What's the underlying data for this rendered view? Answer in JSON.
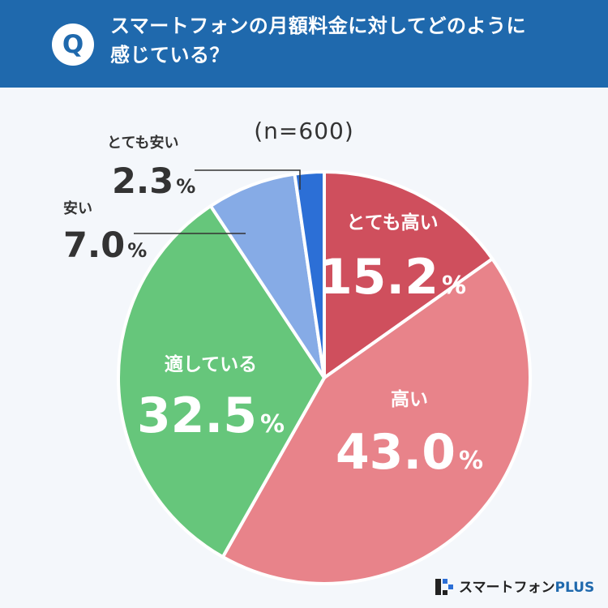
{
  "header": {
    "badge": "Q",
    "question_line1": "スマートフォンの月額料金に対してどのように",
    "question_line2": "感じている？"
  },
  "chart_data": {
    "type": "pie",
    "n_label": "(n=600)",
    "start_angle_deg": 0,
    "direction": "clockwise",
    "categories": [
      "とても高い",
      "高い",
      "適している",
      "安い",
      "とても安い"
    ],
    "values": [
      15.2,
      43.0,
      32.5,
      7.0,
      2.3
    ],
    "value_texts": [
      "15.2",
      "43.0",
      "32.5",
      "7.0",
      "2.3"
    ],
    "unit": "%",
    "colors": [
      "#cf4f5d",
      "#e8838a",
      "#66c67b",
      "#86abe6",
      "#2c6fd6"
    ],
    "label_placement": [
      "inside",
      "inside",
      "inside",
      "outside",
      "outside"
    ]
  },
  "logo": {
    "name_main": "スマートフォン",
    "name_accent": "PLUS",
    "accent_color": "#1f69ad"
  }
}
